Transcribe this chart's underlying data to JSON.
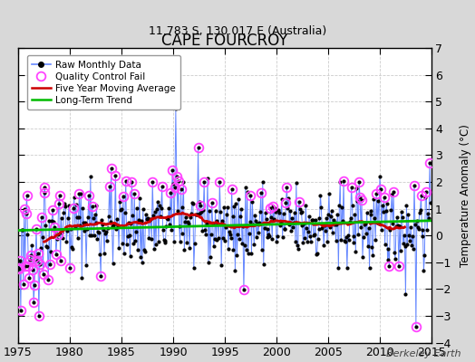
{
  "title": "CAPE FOURCROY",
  "subtitle": "11.783 S, 130.017 E (Australia)",
  "ylabel": "Temperature Anomaly (°C)",
  "xlim": [
    1975,
    2015
  ],
  "ylim": [
    -4,
    7
  ],
  "yticks": [
    -4,
    -3,
    -2,
    -1,
    0,
    1,
    2,
    3,
    4,
    5,
    6,
    7
  ],
  "xticks": [
    1975,
    1980,
    1985,
    1990,
    1995,
    2000,
    2005,
    2010,
    2015
  ],
  "fig_background": "#d8d8d8",
  "plot_background": "#ffffff",
  "grid_color": "#cccccc",
  "raw_line_color": "#6688ff",
  "raw_marker_color": "#000000",
  "moving_avg_color": "#cc0000",
  "trend_color": "#00bb00",
  "qc_fail_color": "#ff44ff",
  "watermark": "Berkeley Earth",
  "legend_labels": [
    "Raw Monthly Data",
    "Quality Control Fail",
    "Five Year Moving Average",
    "Long-Term Trend"
  ],
  "seed": 42,
  "n_months": 480,
  "start_year": 1975
}
